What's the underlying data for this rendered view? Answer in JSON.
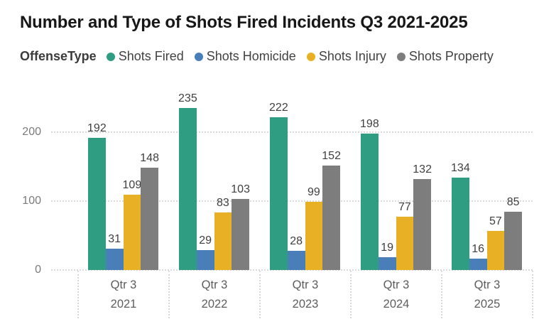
{
  "chart_data": {
    "type": "bar",
    "title": "Number and Type of Shots Fired Incidents Q3 2021-2025",
    "legend_title": "OffenseType",
    "legend_position": "top",
    "categories": [
      {
        "quarter": "Qtr 3",
        "year": "2021"
      },
      {
        "quarter": "Qtr 3",
        "year": "2022"
      },
      {
        "quarter": "Qtr 3",
        "year": "2023"
      },
      {
        "quarter": "Qtr 3",
        "year": "2024"
      },
      {
        "quarter": "Qtr 3",
        "year": "2025"
      }
    ],
    "series": [
      {
        "name": "Shots Fired",
        "color": "#2E9D81",
        "values": [
          192,
          235,
          222,
          198,
          134
        ]
      },
      {
        "name": "Shots Homicide",
        "color": "#4A7EB8",
        "values": [
          31,
          29,
          28,
          19,
          16
        ]
      },
      {
        "name": "Shots Injury",
        "color": "#E8B024",
        "values": [
          109,
          83,
          99,
          77,
          57
        ]
      },
      {
        "name": "Shots Property",
        "color": "#7D7D7D",
        "values": [
          148,
          103,
          152,
          132,
          85
        ]
      }
    ],
    "y_ticks": [
      0,
      100,
      200
    ],
    "ylim": [
      0,
      240
    ],
    "grid": {
      "horizontal": "dotted",
      "category_separators": "dotted"
    },
    "colors": {
      "title_text": "#171717",
      "legend_text": "#424242",
      "axis_text": "#7b7b7b",
      "category_text": "#5d5d5d",
      "gridline": "#d9d9d9",
      "background": "#ffffff"
    }
  }
}
